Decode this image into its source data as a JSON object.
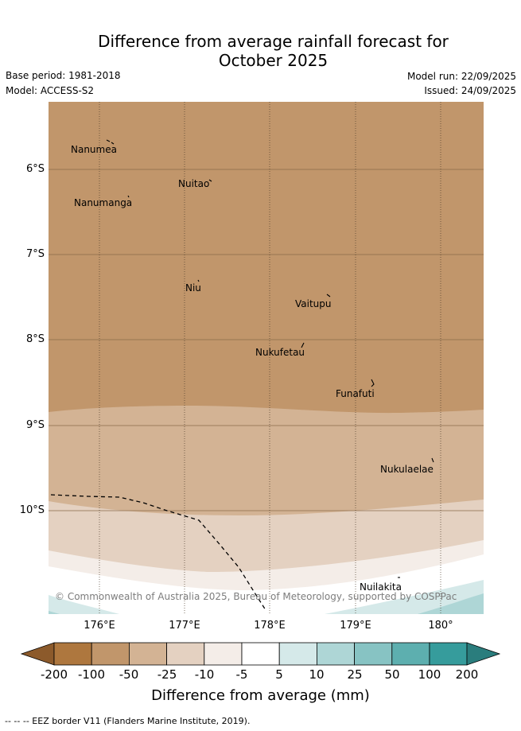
{
  "header": {
    "title_line1": "Difference from average rainfall forecast for",
    "title_line2": "October 2025",
    "base_period": "Base period: 1981-2018",
    "model": "Model: ACCESS-S2",
    "model_run": "Model run: 22/09/2025",
    "issued": "Issued: 24/09/2025"
  },
  "map": {
    "lat_labels": [
      "6°S",
      "7°S",
      "8°S",
      "9°S",
      "10°S"
    ],
    "lon_labels": [
      "176°E",
      "177°E",
      "178°E",
      "179°E",
      "180°"
    ],
    "places": {
      "nanumea": "Nanumea",
      "nuitao": "Nuitao",
      "nanumanga": "Nanumanga",
      "niu": "Niu",
      "vaitupu": "Vaitupu",
      "nukufetau": "Nukufetau",
      "funafuti": "Funafuti",
      "nukulaelae": "Nukulaelae",
      "nuilakita": "Nuilakita"
    },
    "copyright": "© Commonwealth of Australia 2025, Bureau of Meteorology, supported by COSPPac"
  },
  "colorbar": {
    "ticks": [
      "-200",
      "-100",
      "-50",
      "-25",
      "-10",
      "-5",
      "5",
      "10",
      "25",
      "50",
      "100",
      "200"
    ],
    "colors": [
      "#8c5a2b",
      "#ae773e",
      "#c1966b",
      "#d3b394",
      "#e4d1c1",
      "#f4ede8",
      "#ffffff",
      "#d5e9e9",
      "#aed6d6",
      "#87c3c3",
      "#5dafaf",
      "#369c9c",
      "#2a7d7d"
    ],
    "title": "Difference from average (mm)"
  },
  "legend": {
    "text": "--  --  -- EEZ border V11 (Flanders Marine Institute, 2019)."
  }
}
